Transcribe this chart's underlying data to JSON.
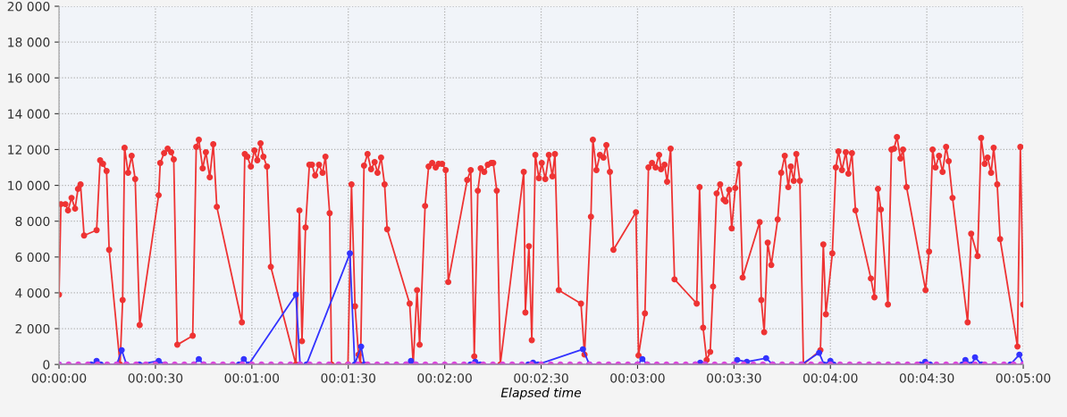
{
  "chart_data": {
    "type": "line",
    "xlabel": "Elapsed time",
    "xlim": [
      0,
      300
    ],
    "xticks": [
      {
        "value": 0,
        "label": "00:00:00"
      },
      {
        "value": 30,
        "label": "00:00:30"
      },
      {
        "value": 60,
        "label": "00:01:00"
      },
      {
        "value": 90,
        "label": "00:01:30"
      },
      {
        "value": 120,
        "label": "00:02:00"
      },
      {
        "value": 150,
        "label": "00:02:30"
      },
      {
        "value": 180,
        "label": "00:03:00"
      },
      {
        "value": 210,
        "label": "00:03:30"
      },
      {
        "value": 240,
        "label": "00:04:00"
      },
      {
        "value": 270,
        "label": "00:04:30"
      },
      {
        "value": 300,
        "label": "00:05:00"
      }
    ],
    "ylim": [
      0,
      20000
    ],
    "yticks": [
      0,
      {
        "value": 2000,
        "label": "2 000"
      },
      {
        "value": 4000,
        "label": "4 000"
      },
      {
        "value": 6000,
        "label": "6 000"
      },
      {
        "value": 8000,
        "label": "8 000"
      },
      {
        "value": 10000,
        "label": "10 000"
      },
      {
        "value": 12000,
        "label": "12 000"
      },
      {
        "value": 14000,
        "label": "14 000"
      },
      {
        "value": 16000,
        "label": "16 000"
      },
      {
        "value": 18000,
        "label": "18 000"
      },
      {
        "value": 20000,
        "label": "20 000"
      }
    ],
    "grid": true,
    "marker": "circle",
    "line_style": "solid",
    "legend": false,
    "series": [
      {
        "color": "#ee3333",
        "x": [
          0,
          0.6,
          2,
          2.8,
          3.9,
          5,
          5.9,
          6.7,
          7.8,
          11.7,
          12.8,
          13.7,
          14.8,
          15.6,
          19,
          19.8,
          20.4,
          21.5,
          22.6,
          23.7,
          25.1,
          31,
          31.5,
          32.7,
          33.8,
          34.9,
          35.7,
          36.8,
          41.6,
          42.7,
          43.5,
          44.7,
          45.7,
          46.9,
          48,
          49.1,
          56.9,
          57.8,
          58.6,
          59.7,
          60.8,
          61.7,
          62.7,
          63.6,
          64.7,
          65.9,
          73.7,
          74.8,
          75.6,
          76.7,
          77.9,
          78.7,
          79.7,
          80.9,
          82,
          82.9,
          84.2,
          84.8,
          89.9,
          91,
          92.1,
          93.2,
          93.8,
          94.9,
          96,
          97.1,
          98.2,
          99.1,
          100.2,
          101.3,
          102.1,
          109.1,
          110.2,
          111.4,
          112.2,
          113.9,
          115,
          116.1,
          117.2,
          118.1,
          119.2,
          120.3,
          121.1,
          127,
          128.1,
          129.2,
          130.3,
          131.2,
          132.3,
          133.4,
          134.5,
          135.1,
          136.2,
          137.3,
          144.6,
          145.1,
          146.2,
          147.1,
          148.2,
          149.3,
          150.2,
          151.3,
          152.4,
          153.5,
          154.3,
          155.5,
          162.4,
          163.5,
          165.5,
          166.1,
          167.2,
          168.3,
          169.4,
          170.3,
          171.4,
          172.5,
          179.5,
          180.3,
          182.3,
          183.4,
          184.5,
          185.6,
          186.7,
          187.3,
          188.4,
          189.2,
          190.3,
          191.5,
          198.4,
          199.3,
          200.4,
          201.5,
          202.6,
          203.5,
          204.6,
          205.7,
          206.8,
          207.4,
          208.5,
          209.3,
          210.4,
          211.6,
          212.7,
          218,
          218.5,
          219.4,
          220.5,
          221.6,
          223.6,
          224.7,
          225.8,
          226.9,
          227.7,
          228.6,
          229.4,
          230.5,
          231.6,
          236.9,
          237.8,
          238.6,
          240.6,
          241.7,
          242.5,
          243.6,
          244.8,
          245.6,
          246.7,
          247.8,
          252.6,
          253.7,
          254.8,
          255.7,
          257.9,
          259,
          259.8,
          260.7,
          261.8,
          262.6,
          263.7,
          269.6,
          270.7,
          271.8,
          272.7,
          273.8,
          274.9,
          276,
          276.8,
          278,
          282.7,
          283.8,
          285.8,
          286.9,
          288,
          288.9,
          290,
          290.8,
          291.9,
          292.8,
          298.2,
          299.1,
          300
        ],
        "values": [
          3900,
          8950,
          8950,
          8600,
          9300,
          8700,
          9800,
          10050,
          7200,
          7500,
          11400,
          11200,
          10800,
          6400,
          0,
          3600,
          12100,
          10700,
          11650,
          10350,
          2200,
          9450,
          11250,
          11800,
          12050,
          11850,
          11450,
          1100,
          1600,
          12150,
          12550,
          10950,
          11850,
          10450,
          12300,
          8800,
          2350,
          11750,
          11600,
          11050,
          11950,
          11400,
          12350,
          11600,
          11050,
          5450,
          0,
          8600,
          1300,
          7650,
          11150,
          11150,
          10550,
          11150,
          10700,
          11600,
          8450,
          0,
          0,
          10050,
          3250,
          550,
          0,
          11100,
          11750,
          10900,
          11300,
          10700,
          11550,
          10050,
          7550,
          3400,
          0,
          4150,
          1100,
          8850,
          11050,
          11250,
          11000,
          11200,
          11200,
          10850,
          4600,
          10300,
          10850,
          450,
          9700,
          10950,
          10750,
          11150,
          11250,
          11250,
          9700,
          0,
          10750,
          2900,
          6600,
          1350,
          11700,
          10400,
          11250,
          10350,
          11700,
          10500,
          11750,
          4150,
          3400,
          550,
          8250,
          12550,
          10850,
          11700,
          11550,
          12250,
          10750,
          6400,
          8500,
          500,
          2850,
          11000,
          11250,
          11000,
          11700,
          10900,
          11150,
          10200,
          12050,
          4750,
          3400,
          9900,
          2050,
          250,
          700,
          4350,
          9550,
          10050,
          9200,
          9100,
          9750,
          7600,
          9850,
          11200,
          4850,
          7950,
          3600,
          1800,
          6800,
          5550,
          8100,
          10700,
          11650,
          9900,
          11050,
          10250,
          11750,
          10250,
          0,
          800,
          6700,
          2800,
          6200,
          11000,
          11900,
          10850,
          11850,
          10650,
          11800,
          8600,
          4800,
          3750,
          9800,
          8650,
          3350,
          12000,
          12050,
          12700,
          11500,
          12000,
          9900,
          4150,
          6300,
          12000,
          11000,
          11650,
          10750,
          12150,
          11350,
          9300,
          2350,
          7300,
          6050,
          12650,
          11200,
          11550,
          10700,
          12100,
          10050,
          7000,
          1000,
          12150,
          3350
        ]
      },
      {
        "color": "#3333ff",
        "x": [
          0,
          10,
          11.7,
          13,
          18,
          19.5,
          21,
          25,
          31,
          33,
          42,
          43.5,
          45,
          56,
          57.5,
          59,
          73.7,
          75,
          77,
          90.5,
          92,
          94,
          95,
          108,
          109.5,
          111,
          128,
          129.5,
          131,
          146,
          147.5,
          149,
          163,
          165,
          180,
          181.5,
          183,
          198,
          199.5,
          201,
          210,
          211,
          214,
          220,
          222,
          231,
          236.5,
          238,
          240,
          241,
          268,
          269.5,
          271,
          281,
          282,
          284,
          285,
          287,
          296,
          298.8,
          300
        ],
        "values": [
          0,
          0,
          200,
          0,
          0,
          800,
          0,
          0,
          200,
          0,
          0,
          300,
          0,
          0,
          300,
          0,
          3900,
          0,
          0,
          6200,
          0,
          1000,
          0,
          0,
          200,
          0,
          0,
          150,
          0,
          0,
          100,
          0,
          850,
          0,
          0,
          300,
          0,
          0,
          100,
          0,
          0,
          250,
          150,
          350,
          0,
          0,
          650,
          0,
          200,
          0,
          0,
          150,
          0,
          0,
          250,
          0,
          400,
          0,
          0,
          550,
          0
        ]
      },
      {
        "color": "#dd44dd",
        "x": [
          0,
          3,
          6,
          9,
          12,
          15,
          18,
          21,
          24,
          27,
          30,
          33,
          36,
          39,
          42,
          45,
          48,
          51,
          54,
          57,
          60,
          63,
          66,
          69,
          72,
          75,
          78,
          81,
          84,
          87,
          90,
          93,
          96,
          99,
          102,
          105,
          108,
          111,
          114,
          117,
          120,
          123,
          126,
          129,
          132,
          135,
          138,
          141,
          144,
          147,
          150,
          153,
          156,
          159,
          162,
          165,
          168,
          171,
          174,
          177,
          180,
          183,
          186,
          189,
          192,
          195,
          198,
          201,
          204,
          207,
          210,
          213,
          216,
          219,
          222,
          225,
          228,
          231,
          234,
          237,
          240,
          243,
          246,
          249,
          252,
          255,
          258,
          261,
          264,
          267,
          270,
          273,
          276,
          279,
          282,
          285,
          288,
          291,
          294,
          297,
          300
        ],
        "values": [
          0,
          0,
          0,
          0,
          0,
          0,
          0,
          0,
          0,
          0,
          0,
          0,
          0,
          0,
          0,
          0,
          0,
          0,
          0,
          0,
          0,
          0,
          0,
          0,
          0,
          0,
          0,
          0,
          0,
          0,
          0,
          0,
          0,
          0,
          0,
          0,
          0,
          0,
          0,
          0,
          0,
          0,
          0,
          0,
          0,
          0,
          0,
          0,
          0,
          0,
          0,
          0,
          0,
          0,
          0,
          0,
          0,
          0,
          0,
          0,
          0,
          0,
          0,
          0,
          0,
          0,
          0,
          0,
          0,
          0,
          0,
          0,
          0,
          0,
          0,
          0,
          0,
          0,
          0,
          0,
          0,
          0,
          0,
          0,
          0,
          0,
          0,
          0,
          0,
          0,
          0,
          0,
          0,
          0,
          0,
          0,
          0,
          0,
          0,
          0,
          0
        ]
      }
    ]
  }
}
